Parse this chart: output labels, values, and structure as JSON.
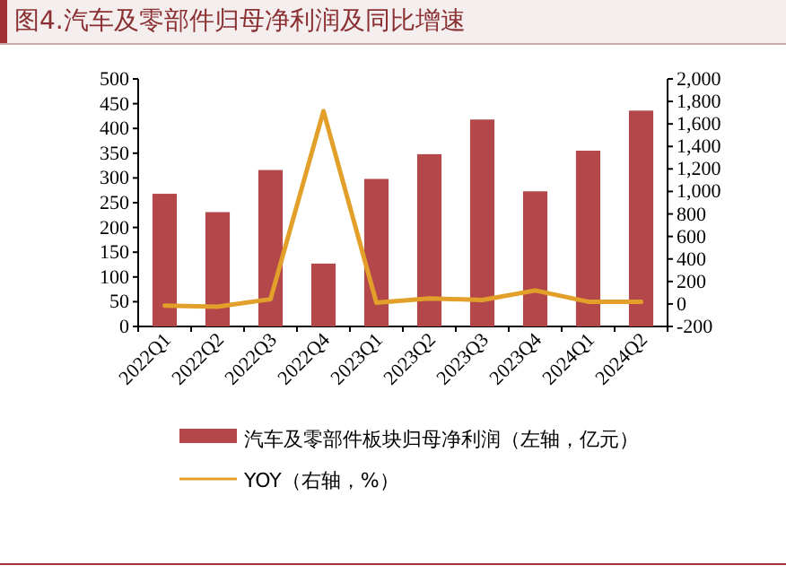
{
  "chart_data": {
    "type": "bar",
    "title": "图4.汽车及零部件归母净利润及同比增速",
    "categories": [
      "2022Q1",
      "2022Q2",
      "2022Q3",
      "2022Q4",
      "2023Q1",
      "2023Q2",
      "2023Q3",
      "2023Q4",
      "2024Q1",
      "2024Q2"
    ],
    "series": [
      {
        "name": "汽车及零部件板块归母净利润（左轴，亿元）",
        "color": "#b3474a",
        "values": [
          268,
          231,
          316,
          127,
          298,
          348,
          418,
          273,
          355,
          436
        ]
      },
      {
        "name": "YOY（右轴，%）",
        "type": "line",
        "axis": "y2",
        "color": "#e2a02a",
        "values": [
          -15,
          -24,
          42,
          1714,
          11,
          50,
          35,
          120,
          20,
          20
        ]
      }
    ],
    "ylim": [
      0,
      500
    ],
    "yticks": [
      0,
      50,
      100,
      150,
      200,
      250,
      300,
      350,
      400,
      450,
      500
    ],
    "y2lim": [
      -200,
      2000
    ],
    "y2ticks": [
      -200,
      0,
      200,
      400,
      600,
      800,
      {
        "value": 1000,
        "label": "1,000"
      },
      {
        "value": 1200,
        "label": "1,200"
      },
      {
        "value": 1400,
        "label": "1,400"
      },
      {
        "value": 1600,
        "label": "1,600"
      },
      {
        "value": 1800,
        "label": "1,800"
      },
      {
        "value": 2000,
        "label": "2,000"
      }
    ],
    "legend": "bottom",
    "grid": false,
    "marker": "none",
    "line_style": "solid"
  }
}
